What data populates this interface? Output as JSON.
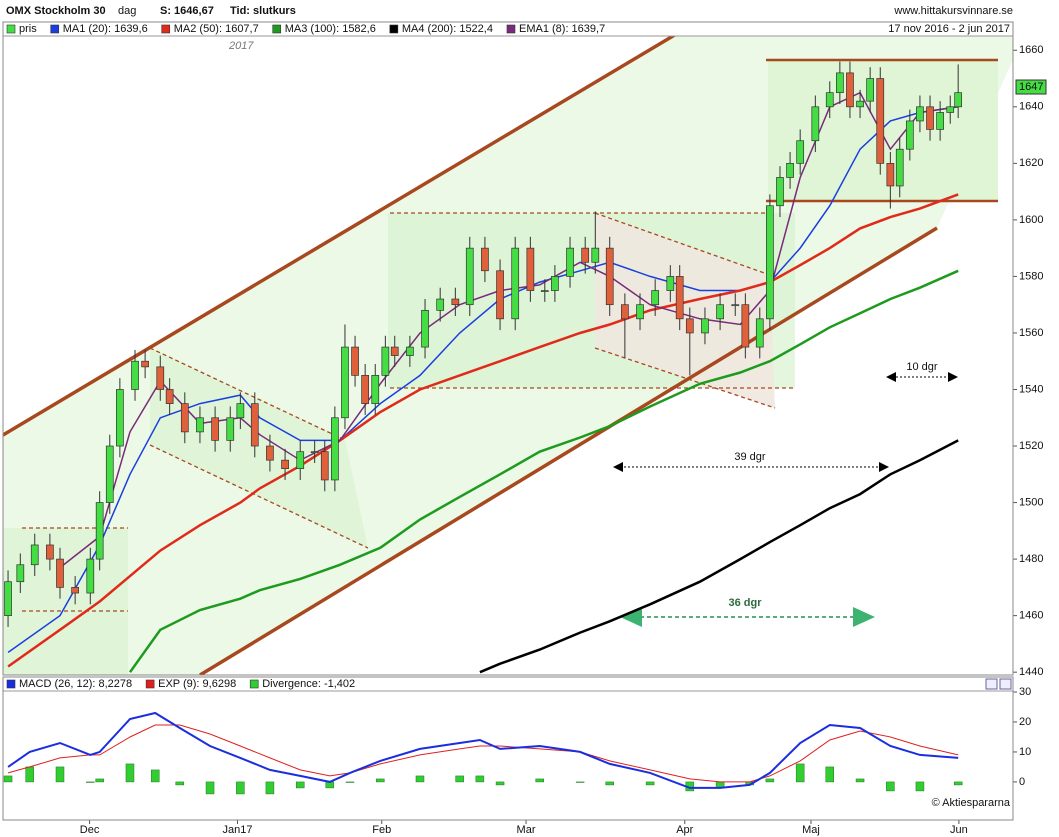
{
  "header": {
    "title": "OMX Stockholm 30",
    "period": "dag",
    "last": "S: 1646,67",
    "mode": "Tid: slutkurs",
    "site": "www.hittakursvinnare.se"
  },
  "chart_data": [
    {
      "type": "candlestick",
      "date_range": "17 nov 2016 - 2 jun 2017",
      "year_label": "2017",
      "price_tag": 1647,
      "annotations": [
        "39 dgr",
        "10 dgr",
        "36 dgr"
      ],
      "xlim": [
        0,
        140
      ],
      "ylim": [
        1439,
        1670
      ],
      "yticks": [
        1440,
        1460,
        1480,
        1500,
        1520,
        1540,
        1560,
        1580,
        1600,
        1620,
        1640,
        1660
      ],
      "series": [
        {
          "name": "pris",
          "color": "#44dd44",
          "down_color": "#e0603c",
          "x": [
            0.7,
            2.4,
            4.4,
            6.5,
            7.9,
            10,
            12.1,
            13.4,
            14.8,
            16.2,
            18.3,
            19.7,
            21.8,
            23.1,
            25.2,
            27.3,
            29.4,
            31.5,
            32.9,
            34.9,
            37,
            39.1,
            41.2,
            43.2,
            44.6,
            46,
            47.4,
            48.8,
            50.2,
            51.6,
            53,
            54.3,
            56.4,
            58.5,
            60.6,
            62.7,
            64.7,
            66.8,
            68.9,
            71,
            73.1,
            75.1,
            76.5,
            78.6,
            80.7,
            82.1,
            84.1,
            86.2,
            88.3,
            90.4,
            92.5,
            93.8,
            95.2,
            97.3,
            99.4,
            101.5,
            102.9,
            104.9,
            106.3,
            107.7,
            109.1,
            110.5,
            112.6,
            114.6,
            116,
            117.4,
            118.8,
            120.2,
            121.6,
            123,
            124.3,
            125.7,
            127.1,
            128.5,
            129.9,
            131.3,
            132.4
          ],
          "open": [
            1460,
            1472,
            1478,
            1485,
            1480,
            1470,
            1468,
            1480,
            1500,
            1520,
            1540,
            1550,
            1548,
            1540,
            1535,
            1525,
            1530,
            1522,
            1530,
            1535,
            1520,
            1515,
            1512,
            1518,
            1518,
            1508,
            1530,
            1555,
            1545,
            1535,
            1545,
            1555,
            1552,
            1555,
            1568,
            1572,
            1570,
            1590,
            1582,
            1565,
            1590,
            1575,
            1575,
            1580,
            1590,
            1585,
            1590,
            1570,
            1565,
            1570,
            1575,
            1580,
            1565,
            1560,
            1565,
            1570,
            1570,
            1555,
            1565,
            1605,
            1615,
            1620,
            1628,
            1640,
            1645,
            1652,
            1640,
            1642,
            1650,
            1620,
            1612,
            1625,
            1635,
            1640,
            1632,
            1638,
            1640
          ],
          "high": [
            1476,
            1482,
            1489,
            1489,
            1484,
            1474,
            1484,
            1504,
            1524,
            1544,
            1554,
            1554,
            1552,
            1544,
            1539,
            1534,
            1534,
            1534,
            1539,
            1539,
            1524,
            1519,
            1522,
            1522,
            1522,
            1534,
            1563,
            1559,
            1549,
            1549,
            1559,
            1559,
            1559,
            1572,
            1576,
            1576,
            1594,
            1594,
            1586,
            1594,
            1594,
            1579,
            1584,
            1594,
            1594,
            1603,
            1594,
            1574,
            1574,
            1579,
            1584,
            1584,
            1569,
            1569,
            1574,
            1574,
            1574,
            1569,
            1609,
            1619,
            1624,
            1632,
            1644,
            1649,
            1656,
            1656,
            1646,
            1654,
            1654,
            1624,
            1629,
            1639,
            1644,
            1644,
            1642,
            1644,
            1655
          ],
          "low": [
            1456,
            1468,
            1474,
            1476,
            1466,
            1464,
            1464,
            1476,
            1496,
            1516,
            1536,
            1544,
            1536,
            1531,
            1521,
            1521,
            1518,
            1518,
            1526,
            1516,
            1511,
            1508,
            1508,
            1514,
            1504,
            1504,
            1526,
            1541,
            1531,
            1531,
            1541,
            1548,
            1548,
            1551,
            1564,
            1566,
            1566,
            1578,
            1561,
            1561,
            1571,
            1571,
            1571,
            1576,
            1581,
            1581,
            1566,
            1551,
            1561,
            1566,
            1571,
            1561,
            1545,
            1556,
            1561,
            1566,
            1551,
            1551,
            1561,
            1601,
            1611,
            1616,
            1624,
            1636,
            1641,
            1636,
            1636,
            1638,
            1616,
            1604,
            1608,
            1621,
            1631,
            1628,
            1628,
            1634,
            1636
          ],
          "close": [
            1472,
            1478,
            1485,
            1480,
            1470,
            1468,
            1480,
            1500,
            1520,
            1540,
            1550,
            1548,
            1540,
            1535,
            1525,
            1530,
            1522,
            1530,
            1535,
            1520,
            1515,
            1512,
            1518,
            1518,
            1508,
            1530,
            1555,
            1545,
            1535,
            1545,
            1555,
            1552,
            1555,
            1568,
            1572,
            1570,
            1590,
            1582,
            1565,
            1590,
            1575,
            1575,
            1580,
            1590,
            1585,
            1590,
            1570,
            1565,
            1570,
            1575,
            1580,
            1565,
            1560,
            1565,
            1570,
            1570,
            1555,
            1565,
            1605,
            1615,
            1620,
            1628,
            1640,
            1645,
            1652,
            1640,
            1642,
            1650,
            1620,
            1612,
            1625,
            1635,
            1640,
            1632,
            1638,
            1640,
            1645
          ]
        },
        {
          "name": "MA1 (20): 1639,6",
          "color": "#1a3fe0",
          "x": [
            0.7,
            7.9,
            13.4,
            17.6,
            21.8,
            27.3,
            32.9,
            35.6,
            41.2,
            46.7,
            52.3,
            57.8,
            63.3,
            68.9,
            74.4,
            80,
            84.1,
            89.7,
            96.6,
            102.2,
            106.3,
            110.5,
            114.6,
            118.8,
            123,
            127.1,
            132.4
          ],
          "values": [
            1447,
            1460,
            1485,
            1510,
            1530,
            1535,
            1538,
            1530,
            1522,
            1522,
            1535,
            1545,
            1560,
            1572,
            1578,
            1582,
            1585,
            1580,
            1575,
            1575,
            1578,
            1590,
            1605,
            1625,
            1635,
            1638,
            1640
          ]
        },
        {
          "name": "MA2 (50): 1607,7",
          "color": "#e02a1a",
          "x": [
            0.7,
            7.9,
            13.4,
            17.6,
            21.8,
            27.3,
            32.9,
            35.6,
            41.2,
            46.7,
            52.3,
            57.8,
            63.3,
            68.9,
            74.4,
            80,
            84.1,
            89.7,
            96.6,
            102.2,
            106.3,
            110.5,
            114.6,
            118.8,
            123,
            127.1,
            132.4
          ],
          "values": [
            1442,
            1455,
            1465,
            1474,
            1483,
            1492,
            1500,
            1505,
            1513,
            1522,
            1532,
            1540,
            1545,
            1550,
            1555,
            1560,
            1563,
            1568,
            1572,
            1575,
            1578,
            1584,
            1590,
            1597,
            1601,
            1604,
            1609
          ]
        },
        {
          "name": "MA3 (100): 1582,6",
          "color": "#1e9a1e",
          "x": [
            17.6,
            21.8,
            27.3,
            32.9,
            35.6,
            41.2,
            46.7,
            52.3,
            57.8,
            63.3,
            68.9,
            74.4,
            80,
            84.1,
            89.7,
            96.6,
            102.2,
            106.3,
            110.5,
            114.6,
            118.8,
            123,
            127.1,
            132.4
          ],
          "values": [
            1440,
            1455,
            1462,
            1466,
            1469,
            1473,
            1478,
            1484,
            1494,
            1502,
            1510,
            1518,
            1523,
            1527,
            1534,
            1542,
            1546,
            1550,
            1556,
            1562,
            1567,
            1572,
            1576,
            1582
          ]
        },
        {
          "name": "MA4 (200): 1522,4",
          "color": "#000000",
          "x": [
            66.1,
            68.9,
            74.4,
            80,
            84.1,
            89.7,
            96.6,
            102.2,
            106.3,
            110.5,
            114.6,
            118.8,
            123,
            127.1,
            132.4
          ],
          "values": [
            1440,
            1443,
            1448,
            1454,
            1458,
            1464,
            1472,
            1480,
            1486,
            1492,
            1498,
            1503,
            1510,
            1515,
            1522
          ]
        },
        {
          "name": "EMA1 (8): 1639,7",
          "color": "#7a2a7a",
          "x": [
            0.7,
            7.9,
            13.4,
            17.6,
            21.8,
            27.3,
            32.9,
            35.6,
            41.2,
            46.7,
            52.3,
            57.8,
            63.3,
            68.9,
            74.4,
            80,
            84.1,
            89.7,
            96.6,
            102.2,
            106.3,
            110.5,
            114.6,
            118.8,
            123,
            127.1,
            132.4
          ],
          "values": [
            null,
            1477,
            1488,
            1525,
            1543,
            1528,
            1530,
            1524,
            1515,
            1522,
            1542,
            1560,
            1570,
            1575,
            1577,
            1585,
            1580,
            1570,
            1565,
            1563,
            1575,
            1615,
            1640,
            1645,
            1625,
            1638,
            1640
          ]
        }
      ]
    },
    {
      "type": "macd",
      "credit": "© Aktiespararna",
      "xlim": [
        0,
        140
      ],
      "xticks": [
        {
          "value": 12,
          "label": "Dec"
        },
        {
          "value": 32.5,
          "label": "Jan17"
        },
        {
          "value": 52.5,
          "label": "Feb"
        },
        {
          "value": 72.5,
          "label": "Mar"
        },
        {
          "value": 94.5,
          "label": "Apr"
        },
        {
          "value": 112,
          "label": "Maj"
        },
        {
          "value": 132.5,
          "label": "Jun"
        }
      ],
      "ylim": [
        -12.7,
        35
      ],
      "yticks": [
        0,
        10,
        20,
        30
      ],
      "x": [
        0.7,
        3.7,
        7.9,
        12.1,
        13.4,
        17.6,
        21.1,
        24.5,
        28.7,
        32.9,
        37,
        41.2,
        45.3,
        48.1,
        52.3,
        57.8,
        63.3,
        66.1,
        68.9,
        74.4,
        80,
        84.1,
        89.7,
        95.2,
        99.4,
        103.5,
        106.3,
        110.5,
        114.6,
        118.8,
        123,
        127.1,
        132.4
      ],
      "series": [
        {
          "name": "MACD (26, 12): 8,2278",
          "color": "#1a2ee0",
          "values": [
            5,
            10,
            13,
            9,
            10,
            21,
            23,
            18,
            12,
            8,
            4,
            2,
            0,
            3,
            7,
            11,
            13,
            14,
            11,
            12,
            10,
            6,
            3,
            -2,
            -2,
            -1,
            3,
            13,
            19,
            18,
            12,
            9,
            8
          ]
        },
        {
          "name": "EXP (9): 9,6298",
          "color": "#e02020",
          "values": [
            3,
            5,
            8,
            9,
            9,
            15,
            19,
            19,
            16,
            12,
            8,
            4,
            2,
            3,
            6,
            9,
            11,
            12,
            12,
            11,
            10,
            7,
            4,
            1,
            0,
            0,
            2,
            7,
            14,
            17,
            15,
            12,
            9
          ]
        },
        {
          "name": "Divergence: -1,402",
          "color": "#33cc33",
          "values": [
            2,
            5,
            5,
            0,
            1,
            6,
            4,
            -1,
            -4,
            -4,
            -4,
            -2,
            -2,
            0,
            1,
            2,
            2,
            2,
            -1,
            1,
            0,
            -1,
            -1,
            -3,
            -2,
            -1,
            1,
            6,
            5,
            1,
            -3,
            -3,
            -1
          ]
        }
      ]
    }
  ]
}
